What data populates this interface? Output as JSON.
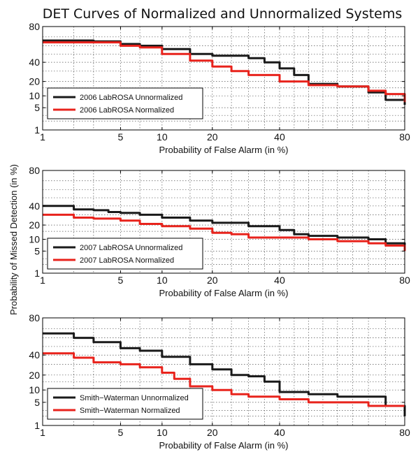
{
  "title": "DET Curves of Normalized and Unnormalized Systems",
  "ylabel": "Probability of Missed Detection (in %)",
  "colors": {
    "unnormalized": "#1a1a1a",
    "normalized": "#e8231c"
  },
  "chart_data": [
    {
      "type": "line",
      "xscale": "normal-deviate",
      "yscale": "normal-deviate",
      "xlim": [
        1,
        80
      ],
      "ylim": [
        1,
        80
      ],
      "xticks": [
        "1",
        "5",
        "10",
        "20",
        "40",
        "80"
      ],
      "yticks": [
        "1",
        "5",
        "10",
        "20",
        "40",
        "80"
      ],
      "xlabel": "Probability of False Alarm (in %)",
      "grid": true,
      "legend_position": "bottom-left",
      "series": [
        {
          "name": "2006 LabROSA Unnormalized",
          "color": "unnormalized",
          "x": [
            1,
            2,
            3,
            5,
            7,
            10,
            15,
            20,
            25,
            30,
            35,
            40,
            45,
            50,
            60,
            70,
            75,
            80
          ],
          "y": [
            66,
            66,
            65,
            62,
            60,
            56,
            50,
            48,
            48,
            45,
            40,
            33,
            26,
            18,
            16,
            12,
            8,
            6
          ]
        },
        {
          "name": "2006 LabROSA Normalized",
          "color": "normalized",
          "x": [
            1,
            2,
            3,
            5,
            7,
            10,
            15,
            20,
            25,
            30,
            40,
            50,
            60,
            70,
            75,
            80
          ],
          "y": [
            64,
            64,
            64,
            60,
            58,
            50,
            42,
            35,
            30,
            26,
            20,
            17,
            16,
            13,
            11,
            7
          ]
        }
      ]
    },
    {
      "type": "line",
      "xscale": "normal-deviate",
      "yscale": "normal-deviate",
      "xlim": [
        1,
        80
      ],
      "ylim": [
        1,
        80
      ],
      "xticks": [
        "1",
        "5",
        "10",
        "20",
        "40",
        "80"
      ],
      "yticks": [
        "1",
        "5",
        "10",
        "20",
        "40",
        "80"
      ],
      "xlabel": "Probability of False Alarm (in %)",
      "grid": true,
      "legend_position": "bottom-left",
      "series": [
        {
          "name": "2007 LabROSA Unnormalized",
          "color": "unnormalized",
          "x": [
            1,
            1.5,
            2,
            3,
            4,
            5,
            7,
            10,
            15,
            20,
            30,
            40,
            45,
            50,
            60,
            70,
            75,
            80
          ],
          "y": [
            40,
            40,
            36,
            35,
            33,
            32,
            30,
            27,
            24,
            22,
            19,
            16,
            13,
            12,
            11,
            10,
            8,
            6
          ]
        },
        {
          "name": "2007 LabROSA Normalized",
          "color": "normalized",
          "x": [
            1,
            1.5,
            2,
            3,
            5,
            7,
            10,
            15,
            20,
            25,
            30,
            40,
            50,
            60,
            70,
            75,
            80
          ],
          "y": [
            30,
            30,
            27,
            26,
            24,
            21,
            19,
            17,
            14,
            13,
            11,
            11,
            10,
            9,
            8,
            7,
            5
          ]
        }
      ]
    },
    {
      "type": "line",
      "xscale": "normal-deviate",
      "yscale": "normal-deviate",
      "xlim": [
        1,
        80
      ],
      "ylim": [
        1,
        80
      ],
      "xticks": [
        "1",
        "5",
        "10",
        "20",
        "40",
        "80"
      ],
      "yticks": [
        "1",
        "5",
        "10",
        "20",
        "40",
        "80"
      ],
      "xlabel": "Probability of False Alarm (in %)",
      "grid": true,
      "legend_position": "bottom-left",
      "series": [
        {
          "name": "Smith−Waterman Unnormalized",
          "color": "unnormalized",
          "x": [
            1,
            2,
            3,
            5,
            7,
            10,
            15,
            20,
            25,
            30,
            35,
            40,
            50,
            60,
            70,
            75,
            80
          ],
          "y": [
            65,
            60,
            55,
            48,
            45,
            38,
            30,
            25,
            20,
            19,
            15,
            9,
            8,
            7,
            7,
            4,
            2
          ]
        },
        {
          "name": "Smith−Waterman Normalized",
          "color": "normalized",
          "x": [
            1,
            2,
            3,
            5,
            7,
            10,
            12,
            15,
            20,
            25,
            30,
            40,
            50,
            60,
            70,
            80
          ],
          "y": [
            42,
            37,
            32,
            30,
            27,
            22,
            17,
            12,
            10,
            8,
            7,
            6,
            5,
            5,
            4,
            4
          ]
        }
      ]
    }
  ]
}
